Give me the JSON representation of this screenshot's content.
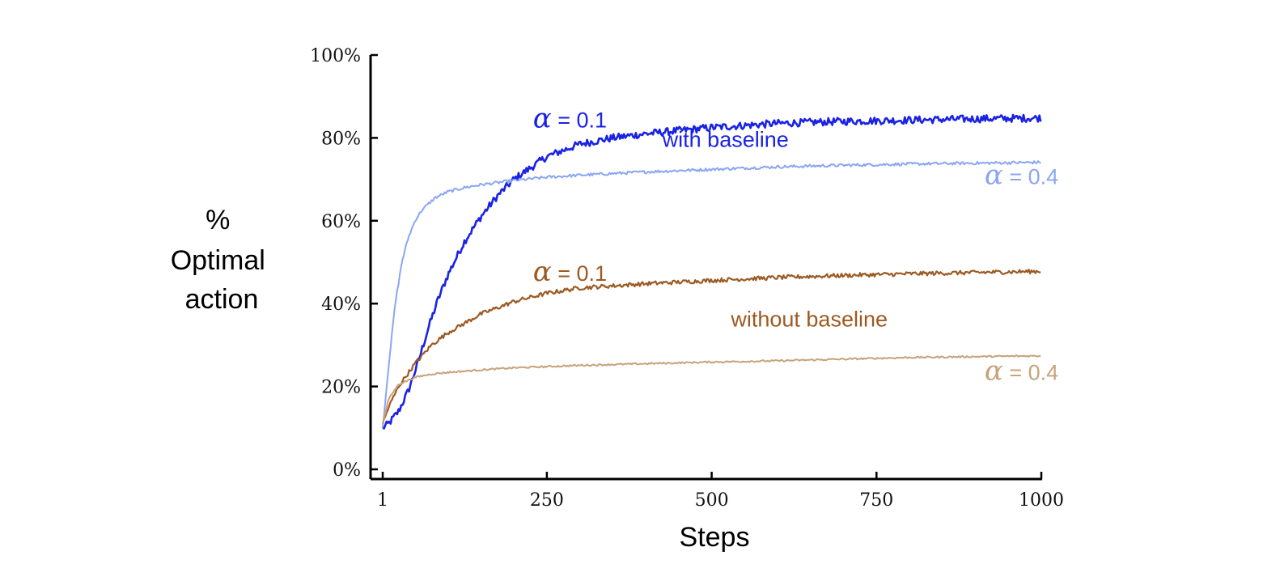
{
  "chart_data": {
    "type": "line",
    "xlabel": "Steps",
    "ylabel_lines": [
      "%",
      "Optimal",
      "action"
    ],
    "xlim": [
      1,
      1000
    ],
    "ylim": [
      0,
      100
    ],
    "xticks": [
      1,
      250,
      500,
      750,
      1000
    ],
    "xtick_labels": [
      "1",
      "250",
      "500",
      "750",
      "1000"
    ],
    "yticks": [
      0,
      20,
      40,
      60,
      80,
      100
    ],
    "ytick_labels": [
      "0%",
      "20%",
      "40%",
      "60%",
      "80%",
      "100%"
    ],
    "grid": false,
    "series": [
      {
        "key": "wb01",
        "color": "#1a22e6",
        "width": 2.6,
        "noise": 0.9,
        "x": [
          1,
          10,
          25,
          40,
          55,
          70,
          85,
          100,
          125,
          150,
          175,
          200,
          250,
          300,
          350,
          400,
          500,
          600,
          700,
          800,
          900,
          1000
        ],
        "y": [
          10,
          11,
          14,
          19,
          26,
          34,
          41,
          47,
          55,
          61,
          66,
          70,
          75.5,
          78.5,
          80,
          81,
          82.5,
          83.5,
          84,
          84.3,
          84.6,
          84.8
        ]
      },
      {
        "key": "wb04",
        "color": "#8aa6f2",
        "width": 2,
        "noise": 0.35,
        "x": [
          1,
          10,
          20,
          30,
          40,
          50,
          60,
          80,
          100,
          125,
          150,
          200,
          250,
          300,
          400,
          500,
          600,
          700,
          800,
          900,
          1000
        ],
        "y": [
          10,
          25,
          40,
          50,
          56,
          60,
          62.5,
          65.5,
          67,
          68,
          68.7,
          69.7,
          70.5,
          71,
          71.8,
          72.4,
          73,
          73.4,
          73.7,
          73.9,
          74.1
        ]
      },
      {
        "key": "wob01",
        "color": "#9c5a23",
        "width": 2.2,
        "noise": 0.5,
        "x": [
          1,
          10,
          25,
          50,
          75,
          100,
          150,
          200,
          250,
          300,
          400,
          500,
          600,
          700,
          800,
          900,
          1000
        ],
        "y": [
          11,
          15,
          20,
          25.5,
          30,
          33,
          37.5,
          40.5,
          42.5,
          43.8,
          44.8,
          45.6,
          46.3,
          46.8,
          47.2,
          47.5,
          47.8
        ]
      },
      {
        "key": "wob04",
        "color": "#c7a37a",
        "width": 2,
        "noise": 0.2,
        "x": [
          1,
          10,
          25,
          50,
          75,
          100,
          150,
          200,
          300,
          400,
          500,
          600,
          700,
          800,
          900,
          1000
        ],
        "y": [
          11,
          17,
          20.5,
          22.2,
          23,
          23.4,
          24,
          24.5,
          25.1,
          25.5,
          25.9,
          26.2,
          26.6,
          27,
          27.2,
          27.4
        ]
      }
    ],
    "annotations": [
      {
        "key": "a1",
        "alpha": "α",
        "text": " = 0.1",
        "color": "#1a22e6",
        "x": 285,
        "y": 82.5
      },
      {
        "key": "a2",
        "alpha": "",
        "text": "with baseline",
        "color": "#1a22e6",
        "x": 521,
        "y": 77.8
      },
      {
        "key": "a3",
        "alpha": "α",
        "text": " = 0.4",
        "color": "#8aa6f2",
        "x": 970,
        "y": 68.8
      },
      {
        "key": "a4",
        "alpha": "α",
        "text": " = 0.1",
        "color": "#9c5a23",
        "x": 285,
        "y": 45.5
      },
      {
        "key": "a5",
        "alpha": "",
        "text": "without baseline",
        "color": "#9c5a23",
        "x": 648,
        "y": 34.5
      },
      {
        "key": "a6",
        "alpha": "α",
        "text": " = 0.4",
        "color": "#c7a37a",
        "x": 970,
        "y": 21.6
      }
    ]
  }
}
